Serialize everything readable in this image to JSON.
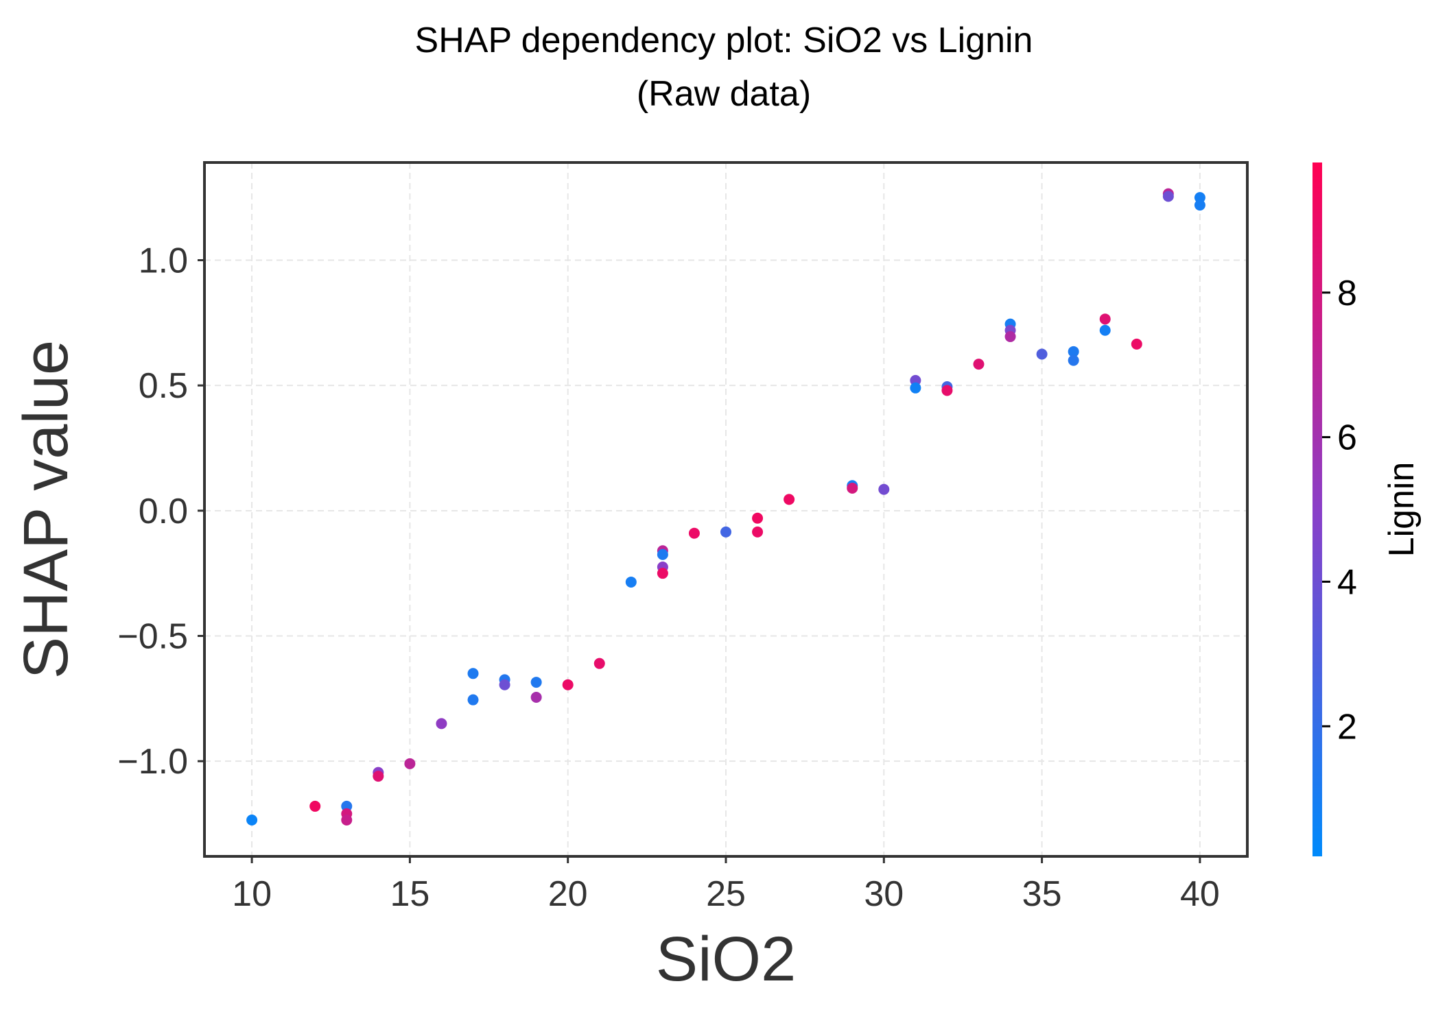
{
  "chart_data": {
    "type": "scatter",
    "title": "SHAP dependency plot: SiO2 vs Lignin",
    "subtitle": "(Raw data)",
    "xlabel": "SiO2",
    "ylabel": "SHAP value",
    "xlim": [
      8.5,
      41.5
    ],
    "ylim": [
      -1.38,
      1.39
    ],
    "xticks": [
      10,
      15,
      20,
      25,
      30,
      35,
      40
    ],
    "xtick_labels": [
      "10",
      "15",
      "20",
      "25",
      "30",
      "35",
      "40"
    ],
    "yticks": [
      -1.0,
      -0.5,
      0.0,
      0.5,
      1.0
    ],
    "ytick_labels": [
      "−1.0",
      "−0.5",
      "0.0",
      "0.5",
      "1.0"
    ],
    "grid": true,
    "colorbar": {
      "label": "Lignin",
      "range": [
        0.2,
        9.8
      ],
      "ticks": [
        2,
        4,
        6,
        8
      ],
      "tick_labels": [
        "2",
        "4",
        "6",
        "8"
      ],
      "color_low": "#008afb",
      "color_high": "#ff0052"
    },
    "points": [
      {
        "x": 10,
        "y": -1.235,
        "c": 0.6
      },
      {
        "x": 12,
        "y": -1.18,
        "c": 9.2
      },
      {
        "x": 13,
        "y": -1.18,
        "c": 1.5
      },
      {
        "x": 13,
        "y": -1.21,
        "c": 8.0
      },
      {
        "x": 13,
        "y": -1.235,
        "c": 7.5
      },
      {
        "x": 14,
        "y": -1.045,
        "c": 5.0
      },
      {
        "x": 14,
        "y": -1.06,
        "c": 8.5
      },
      {
        "x": 15,
        "y": -1.01,
        "c": 7.0
      },
      {
        "x": 16,
        "y": -0.85,
        "c": 5.2
      },
      {
        "x": 17,
        "y": -0.65,
        "c": 1.2
      },
      {
        "x": 17,
        "y": -0.755,
        "c": 1.3
      },
      {
        "x": 18,
        "y": -0.675,
        "c": 1.4
      },
      {
        "x": 18,
        "y": -0.695,
        "c": 4.0
      },
      {
        "x": 19,
        "y": -0.685,
        "c": 1.3
      },
      {
        "x": 19,
        "y": -0.745,
        "c": 6.2
      },
      {
        "x": 20,
        "y": -0.695,
        "c": 9.0
      },
      {
        "x": 21,
        "y": -0.61,
        "c": 8.8
      },
      {
        "x": 22,
        "y": -0.285,
        "c": 1.0
      },
      {
        "x": 23,
        "y": -0.16,
        "c": 7.0
      },
      {
        "x": 23,
        "y": -0.175,
        "c": 1.2
      },
      {
        "x": 23,
        "y": -0.225,
        "c": 5.0
      },
      {
        "x": 23,
        "y": -0.25,
        "c": 9.0
      },
      {
        "x": 24,
        "y": -0.09,
        "c": 9.0
      },
      {
        "x": 25,
        "y": -0.085,
        "c": 2.5
      },
      {
        "x": 26,
        "y": -0.03,
        "c": 9.2
      },
      {
        "x": 26,
        "y": -0.085,
        "c": 9.0
      },
      {
        "x": 27,
        "y": 0.045,
        "c": 9.1
      },
      {
        "x": 29,
        "y": 0.1,
        "c": 1.0
      },
      {
        "x": 29,
        "y": 0.09,
        "c": 8.0
      },
      {
        "x": 30,
        "y": 0.085,
        "c": 4.2
      },
      {
        "x": 31,
        "y": 0.52,
        "c": 4.2
      },
      {
        "x": 31,
        "y": 0.49,
        "c": 0.8
      },
      {
        "x": 32,
        "y": 0.495,
        "c": 2.5
      },
      {
        "x": 32,
        "y": 0.48,
        "c": 8.8
      },
      {
        "x": 33,
        "y": 0.585,
        "c": 8.5
      },
      {
        "x": 34,
        "y": 0.745,
        "c": 1.0
      },
      {
        "x": 34,
        "y": 0.72,
        "c": 4.5
      },
      {
        "x": 34,
        "y": 0.695,
        "c": 6.5
      },
      {
        "x": 35,
        "y": 0.625,
        "c": 3.0
      },
      {
        "x": 36,
        "y": 0.635,
        "c": 1.2
      },
      {
        "x": 36,
        "y": 0.6,
        "c": 1.5
      },
      {
        "x": 37,
        "y": 0.765,
        "c": 8.5
      },
      {
        "x": 37,
        "y": 0.72,
        "c": 0.9
      },
      {
        "x": 38,
        "y": 0.665,
        "c": 9.0
      },
      {
        "x": 39,
        "y": 1.265,
        "c": 7.0
      },
      {
        "x": 39,
        "y": 1.255,
        "c": 4.0
      },
      {
        "x": 40,
        "y": 1.25,
        "c": 0.9
      },
      {
        "x": 40,
        "y": 1.22,
        "c": 1.0
      }
    ]
  }
}
